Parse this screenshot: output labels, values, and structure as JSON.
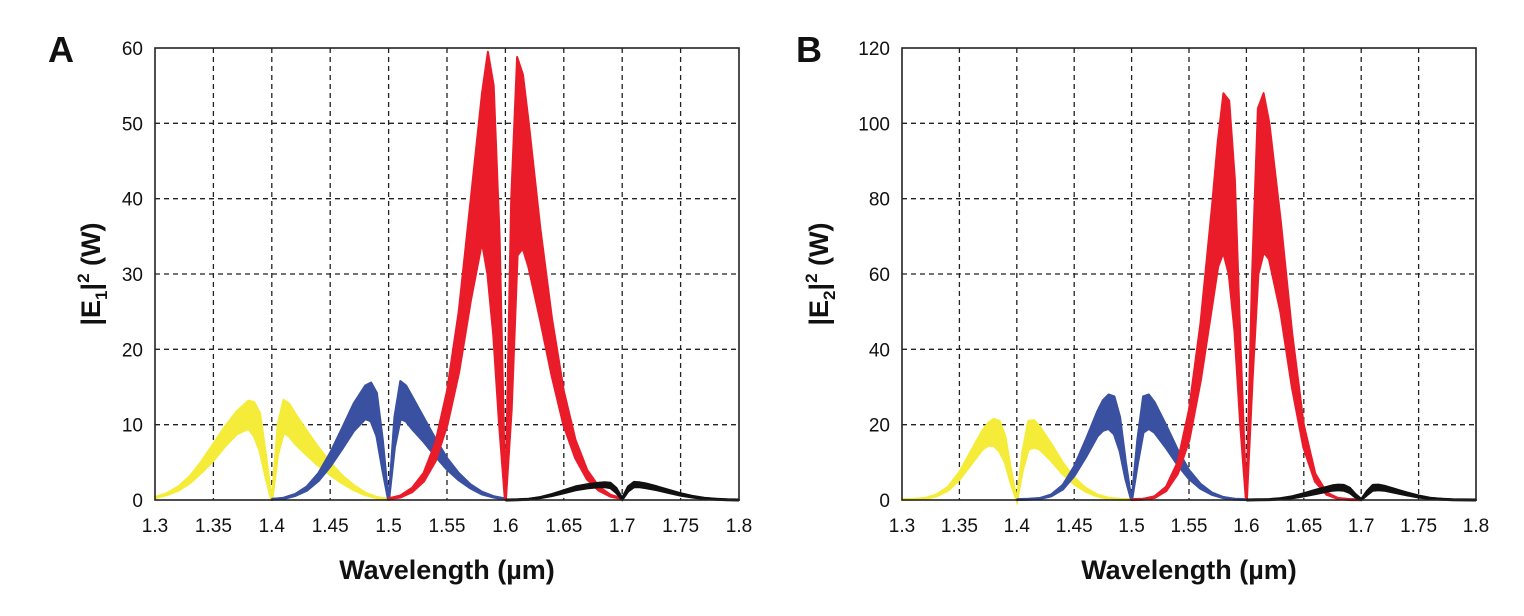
{
  "chart_data": [
    {
      "type": "area",
      "panel_label": "A",
      "title": "",
      "xlabel": "Wavelength (µm)",
      "ylabel": {
        "prefix": "|E",
        "sub": "1",
        "mid": "|",
        "sup": "2",
        "suffix": " (W)"
      },
      "xlim": [
        1.3,
        1.8
      ],
      "ylim": [
        0,
        60
      ],
      "x_ticks": [
        1.3,
        1.35,
        1.4,
        1.45,
        1.5,
        1.55,
        1.6,
        1.65,
        1.7,
        1.75,
        1.8
      ],
      "x_tick_labels": [
        "1.3",
        "1.35",
        "1.4",
        "1.45",
        "1.5",
        "1.55",
        "1.6",
        "1.65",
        "1.7",
        "1.75",
        "1.8"
      ],
      "y_ticks": [
        0,
        10,
        20,
        30,
        40,
        50,
        60
      ],
      "y_tick_labels": [
        "0",
        "10",
        "20",
        "30",
        "40",
        "50",
        "60"
      ],
      "grid": true,
      "legend": "none",
      "series": [
        {
          "name": "yellow",
          "color": "#f5ec3a",
          "x": [
            1.3,
            1.31,
            1.32,
            1.33,
            1.34,
            1.35,
            1.36,
            1.37,
            1.38,
            1.385,
            1.39,
            1.395,
            1.4,
            1.405,
            1.41,
            1.415,
            1.42,
            1.43,
            1.44,
            1.45,
            1.46,
            1.47,
            1.48,
            1.49,
            1.5
          ],
          "upper": [
            0.4,
            0.9,
            1.8,
            3.2,
            5.2,
            7.5,
            9.8,
            11.8,
            13.2,
            13.0,
            11.5,
            6.0,
            0.0,
            10.0,
            13.3,
            12.8,
            11.5,
            9.2,
            7.0,
            5.0,
            3.3,
            2.0,
            1.0,
            0.4,
            0.1
          ],
          "lower": [
            0.3,
            0.7,
            1.3,
            2.3,
            3.7,
            5.3,
            7.2,
            8.8,
            9.5,
            8.5,
            6.5,
            3.0,
            0.0,
            6.0,
            9.0,
            8.5,
            7.5,
            6.0,
            4.6,
            3.4,
            2.3,
            1.4,
            0.7,
            0.3,
            0.1
          ]
        },
        {
          "name": "blue",
          "color": "#3a50a0",
          "x": [
            1.4,
            1.41,
            1.42,
            1.43,
            1.44,
            1.45,
            1.46,
            1.47,
            1.48,
            1.485,
            1.49,
            1.495,
            1.5,
            1.505,
            1.51,
            1.515,
            1.52,
            1.53,
            1.54,
            1.55,
            1.56,
            1.57,
            1.58,
            1.59,
            1.6
          ],
          "upper": [
            0.1,
            0.3,
            0.8,
            1.8,
            3.6,
            6.3,
            9.5,
            12.8,
            15.2,
            15.6,
            14.2,
            8.0,
            0.0,
            11.0,
            15.8,
            15.2,
            13.8,
            11.0,
            8.2,
            5.6,
            3.6,
            2.1,
            1.1,
            0.5,
            0.2
          ],
          "lower": [
            0.1,
            0.2,
            0.6,
            1.3,
            2.6,
            4.5,
            6.8,
            9.2,
            10.8,
            10.5,
            8.5,
            4.0,
            0.0,
            7.0,
            10.8,
            10.5,
            9.5,
            7.8,
            5.9,
            4.1,
            2.7,
            1.6,
            0.8,
            0.4,
            0.1
          ]
        },
        {
          "name": "red",
          "color": "#ea1c2a",
          "x": [
            1.5,
            1.51,
            1.52,
            1.53,
            1.54,
            1.55,
            1.56,
            1.57,
            1.58,
            1.585,
            1.59,
            1.595,
            1.6,
            1.605,
            1.61,
            1.615,
            1.62,
            1.63,
            1.64,
            1.65,
            1.66,
            1.67,
            1.68,
            1.69,
            1.7
          ],
          "upper": [
            0.2,
            0.6,
            1.6,
            3.6,
            7.6,
            14.5,
            25.0,
            39.5,
            54.0,
            59.5,
            55.0,
            35.0,
            0.0,
            40.0,
            58.8,
            56.5,
            50.0,
            36.0,
            24.0,
            14.5,
            8.0,
            4.0,
            1.8,
            0.7,
            0.2
          ],
          "lower": [
            0.2,
            0.4,
            1.1,
            2.5,
            5.2,
            10.0,
            17.0,
            26.5,
            34.5,
            30.0,
            22.0,
            10.0,
            0.0,
            12.0,
            32.5,
            33.5,
            31.0,
            24.0,
            16.5,
            10.0,
            5.6,
            2.8,
            1.3,
            0.5,
            0.2
          ]
        },
        {
          "name": "black",
          "color": "#111111",
          "x": [
            1.6,
            1.61,
            1.62,
            1.63,
            1.64,
            1.65,
            1.66,
            1.67,
            1.68,
            1.685,
            1.69,
            1.695,
            1.7,
            1.705,
            1.71,
            1.715,
            1.72,
            1.73,
            1.74,
            1.75,
            1.76,
            1.77,
            1.78,
            1.79,
            1.8
          ],
          "upper": [
            0.0,
            0.05,
            0.15,
            0.4,
            0.8,
            1.3,
            1.8,
            2.1,
            2.3,
            2.35,
            2.3,
            1.6,
            0.3,
            1.8,
            2.4,
            2.35,
            2.2,
            1.8,
            1.35,
            0.9,
            0.55,
            0.3,
            0.15,
            0.05,
            0.0
          ],
          "lower": [
            0.0,
            0.03,
            0.1,
            0.3,
            0.6,
            0.95,
            1.35,
            1.6,
            1.75,
            1.75,
            1.65,
            1.0,
            0.1,
            1.2,
            1.75,
            1.75,
            1.65,
            1.35,
            1.0,
            0.65,
            0.4,
            0.2,
            0.1,
            0.03,
            0.0
          ]
        }
      ]
    },
    {
      "type": "area",
      "panel_label": "B",
      "title": "",
      "xlabel": "Wavelength (µm)",
      "ylabel": {
        "prefix": "|E",
        "sub": "2",
        "mid": "|",
        "sup": "2",
        "suffix": " (W)"
      },
      "xlim": [
        1.3,
        1.8
      ],
      "ylim": [
        0,
        120
      ],
      "x_ticks": [
        1.3,
        1.35,
        1.4,
        1.45,
        1.5,
        1.55,
        1.6,
        1.65,
        1.7,
        1.75,
        1.8
      ],
      "x_tick_labels": [
        "1.3",
        "1.35",
        "1.4",
        "1.45",
        "1.5",
        "1.55",
        "1.6",
        "1.65",
        "1.7",
        "1.75",
        "1.8"
      ],
      "y_ticks": [
        0,
        20,
        40,
        60,
        80,
        100,
        120
      ],
      "y_tick_labels": [
        "0",
        "20",
        "40",
        "60",
        "80",
        "100",
        "120"
      ],
      "grid": true,
      "legend": "none",
      "series": [
        {
          "name": "yellow",
          "color": "#f5ec3a",
          "x": [
            1.3,
            1.31,
            1.32,
            1.33,
            1.34,
            1.35,
            1.36,
            1.37,
            1.375,
            1.38,
            1.385,
            1.39,
            1.395,
            1.4,
            1.405,
            1.41,
            1.415,
            1.42,
            1.43,
            1.44,
            1.45,
            1.46,
            1.47,
            1.48,
            1.49,
            1.5
          ],
          "upper": [
            0.1,
            0.2,
            0.5,
            1.5,
            3.5,
            7.5,
            13.0,
            18.5,
            20.5,
            21.5,
            21.0,
            17.0,
            8.0,
            0.0,
            13.0,
            21.0,
            21.2,
            19.5,
            15.0,
            10.0,
            6.0,
            3.2,
            1.5,
            0.6,
            0.2,
            0.1
          ],
          "lower": [
            0.1,
            0.2,
            0.4,
            1.1,
            2.6,
            5.5,
            9.5,
            13.5,
            14.5,
            14.5,
            13.0,
            10.0,
            4.5,
            0.0,
            8.0,
            13.5,
            14.0,
            13.5,
            10.5,
            7.0,
            4.3,
            2.3,
            1.1,
            0.4,
            0.2,
            0.1
          ]
        },
        {
          "name": "blue",
          "color": "#3a50a0",
          "x": [
            1.4,
            1.41,
            1.42,
            1.43,
            1.44,
            1.45,
            1.46,
            1.47,
            1.475,
            1.48,
            1.485,
            1.49,
            1.495,
            1.5,
            1.505,
            1.51,
            1.515,
            1.52,
            1.53,
            1.54,
            1.55,
            1.56,
            1.57,
            1.58,
            1.59,
            1.6
          ],
          "upper": [
            0.1,
            0.2,
            0.5,
            1.5,
            4.0,
            9.0,
            16.0,
            23.5,
            26.5,
            28.0,
            27.5,
            22.0,
            10.0,
            0.0,
            16.0,
            27.5,
            28.0,
            26.0,
            20.0,
            13.5,
            8.0,
            4.3,
            2.0,
            0.8,
            0.3,
            0.1
          ],
          "lower": [
            0.1,
            0.2,
            0.4,
            1.1,
            2.9,
            6.5,
            11.5,
            17.0,
            18.5,
            19.0,
            17.5,
            13.0,
            5.5,
            0.0,
            9.5,
            18.0,
            19.0,
            18.0,
            14.0,
            9.5,
            5.7,
            3.1,
            1.5,
            0.6,
            0.2,
            0.1
          ]
        },
        {
          "name": "red",
          "color": "#ea1c2a",
          "x": [
            1.5,
            1.51,
            1.52,
            1.53,
            1.54,
            1.55,
            1.56,
            1.57,
            1.575,
            1.58,
            1.585,
            1.59,
            1.595,
            1.6,
            1.605,
            1.61,
            1.615,
            1.62,
            1.63,
            1.64,
            1.65,
            1.66,
            1.67,
            1.68,
            1.69,
            1.7
          ],
          "upper": [
            0.1,
            0.3,
            1.0,
            3.5,
            10.0,
            24.0,
            47.0,
            78.0,
            95.0,
            108.0,
            106.0,
            85.0,
            40.0,
            0.0,
            60.0,
            104.0,
            108.0,
            100.0,
            74.0,
            44.0,
            20.0,
            7.0,
            2.0,
            0.5,
            0.2,
            0.1
          ],
          "lower": [
            0.1,
            0.2,
            0.7,
            2.5,
            7.0,
            16.0,
            32.0,
            52.0,
            62.0,
            66.0,
            60.0,
            45.0,
            20.0,
            0.0,
            32.0,
            60.0,
            66.0,
            64.0,
            50.0,
            30.0,
            14.0,
            5.0,
            1.5,
            0.4,
            0.1,
            0.1
          ]
        },
        {
          "name": "black",
          "color": "#111111",
          "x": [
            1.6,
            1.61,
            1.62,
            1.63,
            1.64,
            1.65,
            1.66,
            1.67,
            1.675,
            1.68,
            1.685,
            1.69,
            1.695,
            1.7,
            1.705,
            1.71,
            1.715,
            1.72,
            1.73,
            1.74,
            1.75,
            1.76,
            1.77,
            1.78,
            1.79,
            1.8
          ],
          "upper": [
            0.0,
            0.1,
            0.2,
            0.5,
            1.0,
            1.8,
            2.7,
            3.5,
            3.9,
            4.1,
            4.0,
            3.3,
            1.6,
            0.3,
            2.4,
            4.0,
            4.1,
            3.8,
            2.9,
            2.0,
            1.2,
            0.6,
            0.3,
            0.1,
            0.05,
            0.0
          ],
          "lower": [
            0.0,
            0.05,
            0.1,
            0.3,
            0.6,
            1.1,
            1.7,
            2.3,
            2.6,
            2.7,
            2.6,
            2.0,
            0.8,
            0.1,
            1.4,
            2.6,
            2.7,
            2.6,
            2.0,
            1.35,
            0.8,
            0.4,
            0.2,
            0.08,
            0.03,
            0.0
          ]
        }
      ]
    }
  ]
}
